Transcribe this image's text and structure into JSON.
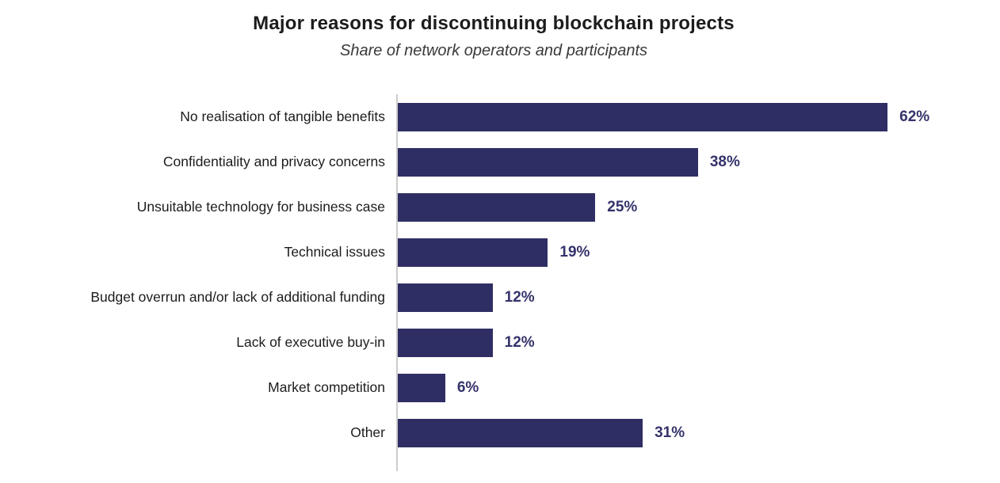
{
  "chart_data": {
    "type": "bar",
    "orientation": "horizontal",
    "title": "Major reasons for discontinuing blockchain projects",
    "subtitle": "Share of network operators and participants",
    "categories": [
      "No realisation of tangible benefits",
      "Confidentiality and privacy concerns",
      "Unsuitable technology for business case",
      "Technical issues",
      "Budget overrun and/or lack of additional funding",
      "Lack of executive buy-in",
      "Market competition",
      "Other"
    ],
    "values": [
      62,
      38,
      25,
      19,
      12,
      12,
      6,
      31
    ],
    "value_labels": [
      "62%",
      "38%",
      "25%",
      "19%",
      "12%",
      "12%",
      "6%",
      "31%"
    ],
    "xlim": [
      0,
      76
    ],
    "grid": false,
    "legend": "none",
    "bar_color": "#2F2E64",
    "value_label_color": "#34336B",
    "axis_line_color": "#CCCCCC",
    "title_color": "#1C1C1E",
    "subtitle_color": "#3A3A3C"
  }
}
